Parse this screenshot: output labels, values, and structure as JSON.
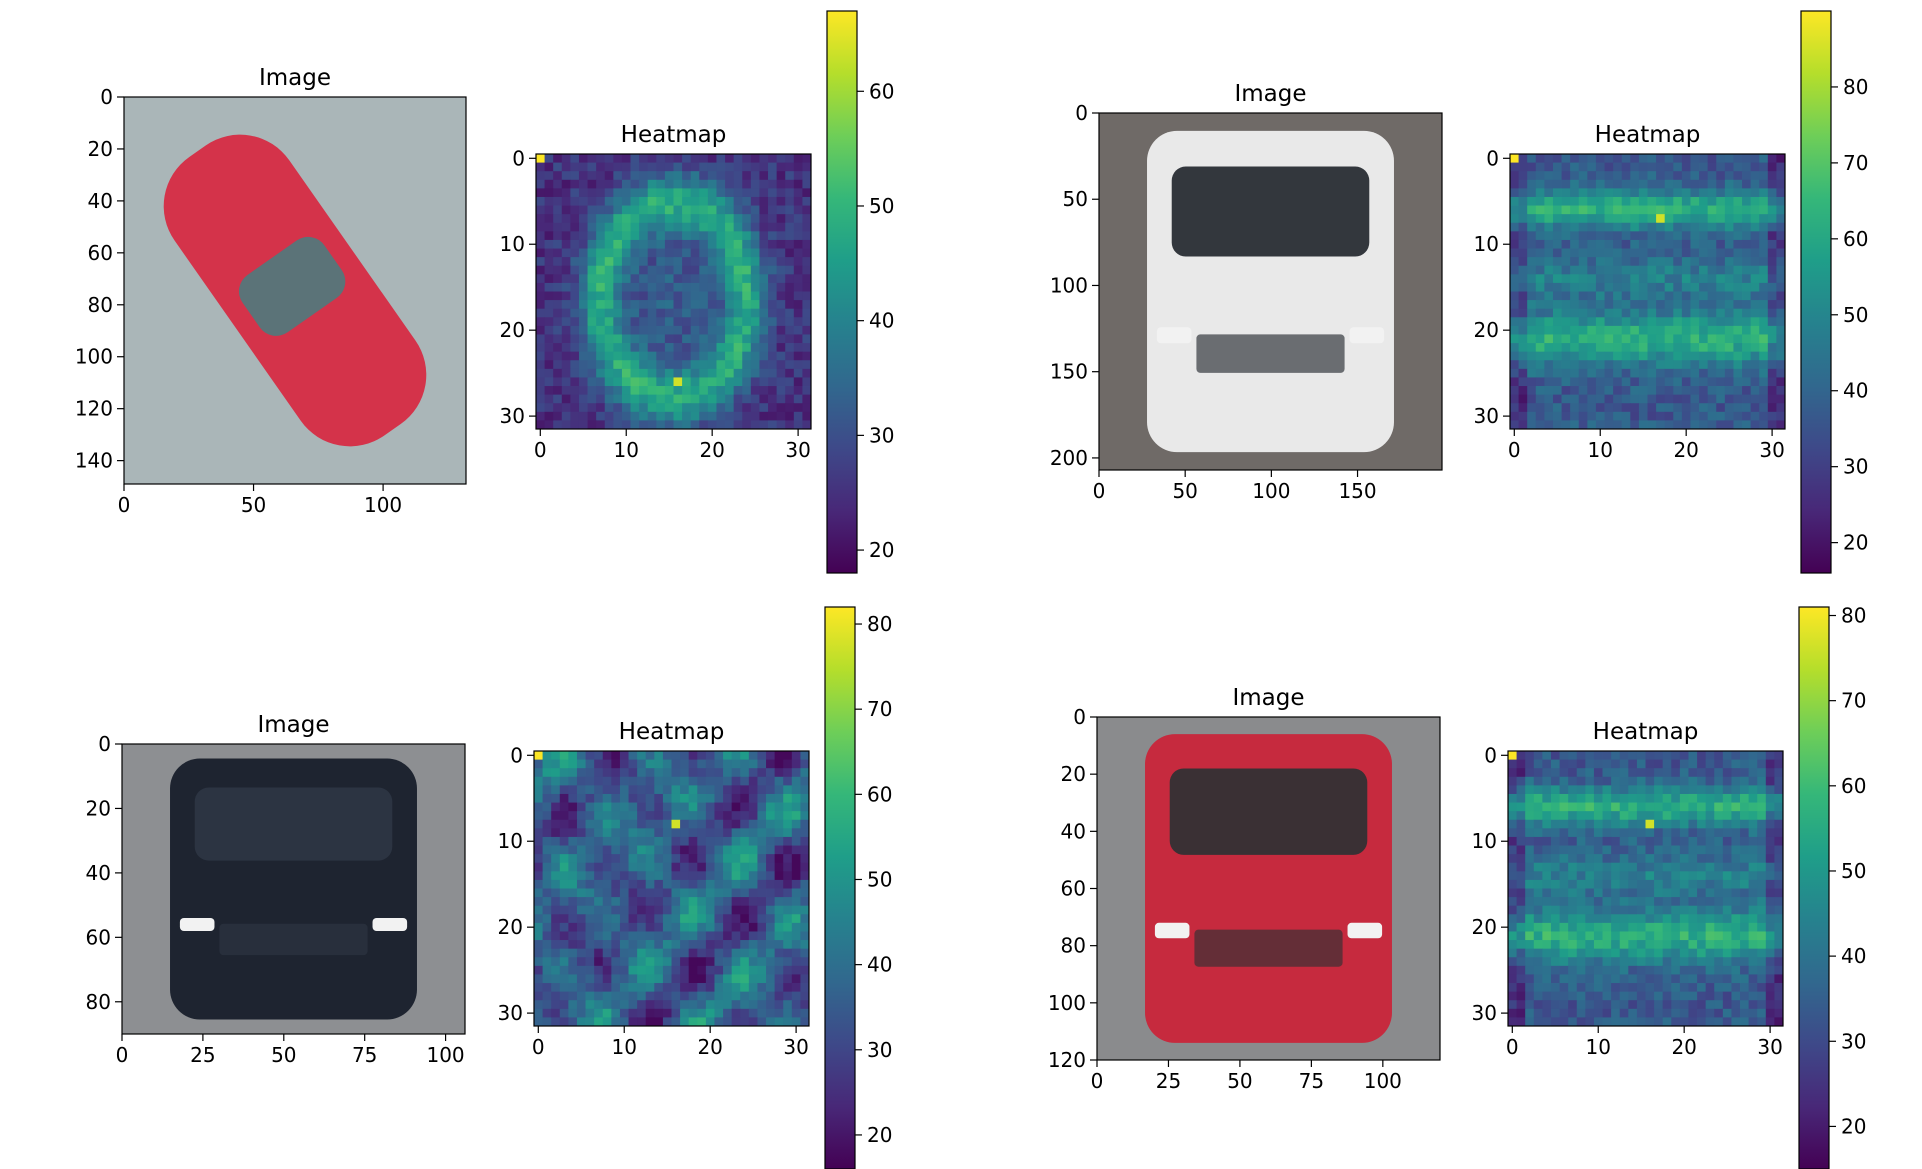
{
  "figure": {
    "background": "#ffffff"
  },
  "colormap": {
    "name": "viridis",
    "stops": [
      "#440154",
      "#482878",
      "#3e4989",
      "#31688e",
      "#26828e",
      "#1f9e89",
      "#35b779",
      "#6ece58",
      "#b5de2b",
      "#fde725"
    ]
  },
  "chart_data": [
    {
      "id": "panel-1",
      "type": "image-with-heatmap",
      "image": {
        "title": "Image",
        "description": "red sports car, top-down view",
        "xlim": [
          0,
          132
        ],
        "ylim": [
          149,
          0
        ],
        "xticks": [
          0,
          50,
          100
        ],
        "yticks": [
          0,
          20,
          40,
          60,
          80,
          100,
          120,
          140
        ],
        "palette": {
          "bg": "#aab6b8",
          "car": "#d4334a",
          "glass": "#5b7378"
        }
      },
      "heatmap": {
        "title": "Heatmap",
        "type": "heatmap",
        "grid": [
          32,
          32
        ],
        "xticks": [
          0,
          10,
          20,
          30
        ],
        "yticks": [
          0,
          10,
          20,
          30
        ],
        "vmin": 18,
        "vmax": 67,
        "pattern": "ellipse",
        "peak_cell": [
          16,
          26
        ],
        "colorbar_ticks": [
          20,
          30,
          40,
          50,
          60
        ]
      }
    },
    {
      "id": "panel-2",
      "type": "image-with-heatmap",
      "image": {
        "title": "Image",
        "description": "white pickup truck, front view",
        "xlim": [
          0,
          199
        ],
        "ylim": [
          207,
          0
        ],
        "xticks": [
          0,
          50,
          100,
          150
        ],
        "yticks": [
          0,
          50,
          100,
          150,
          200
        ],
        "palette": {
          "bg": "#6f6a67",
          "car": "#e9e9e9",
          "glass": "#33373d"
        }
      },
      "heatmap": {
        "title": "Heatmap",
        "type": "heatmap",
        "grid": [
          32,
          32
        ],
        "xticks": [
          0,
          10,
          20,
          30
        ],
        "yticks": [
          0,
          10,
          20,
          30
        ],
        "vmin": 16,
        "vmax": 90,
        "pattern": "bands",
        "peak_cell": [
          17,
          7
        ],
        "colorbar_ticks": [
          20,
          30,
          40,
          50,
          60,
          70,
          80
        ]
      }
    },
    {
      "id": "panel-3",
      "type": "image-with-heatmap",
      "image": {
        "title": "Image",
        "description": "black pickup truck, front view",
        "xlim": [
          0,
          106
        ],
        "ylim": [
          90,
          0
        ],
        "xticks": [
          0,
          25,
          50,
          75,
          100
        ],
        "yticks": [
          0,
          20,
          40,
          60,
          80
        ],
        "palette": {
          "bg": "#8d8f92",
          "car": "#1e2430",
          "glass": "#2c3442"
        }
      },
      "heatmap": {
        "title": "Heatmap",
        "type": "heatmap",
        "grid": [
          32,
          32
        ],
        "xticks": [
          0,
          10,
          20,
          30
        ],
        "yticks": [
          0,
          10,
          20,
          30
        ],
        "vmin": 16,
        "vmax": 82,
        "pattern": "patchy",
        "peak_cell": [
          16,
          8
        ],
        "colorbar_ticks": [
          20,
          30,
          40,
          50,
          60,
          70,
          80
        ]
      }
    },
    {
      "id": "panel-4",
      "type": "image-with-heatmap",
      "image": {
        "title": "Image",
        "description": "red sedan, front view",
        "xlim": [
          0,
          120
        ],
        "ylim": [
          120,
          0
        ],
        "xticks": [
          0,
          25,
          50,
          75,
          100
        ],
        "yticks": [
          0,
          20,
          40,
          60,
          80,
          100,
          120
        ],
        "palette": {
          "bg": "#8a8b8d",
          "car": "#c62a3e",
          "glass": "#3a3034"
        }
      },
      "heatmap": {
        "title": "Heatmap",
        "type": "heatmap",
        "grid": [
          32,
          32
        ],
        "xticks": [
          0,
          10,
          20,
          30
        ],
        "yticks": [
          0,
          10,
          20,
          30
        ],
        "vmin": 15,
        "vmax": 81,
        "pattern": "bands",
        "peak_cell": [
          16,
          8
        ],
        "colorbar_ticks": [
          20,
          30,
          40,
          50,
          60,
          70,
          80
        ]
      }
    }
  ]
}
